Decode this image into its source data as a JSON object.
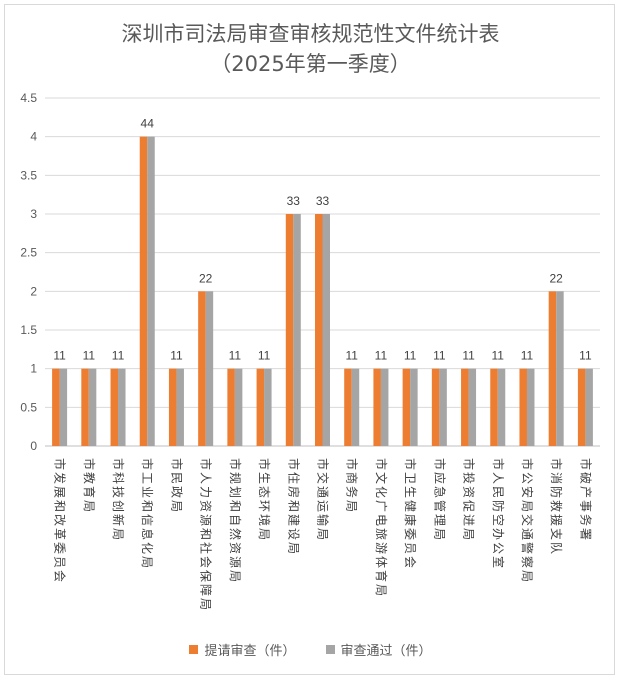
{
  "chart_data": {
    "type": "bar",
    "title": "深圳市司法局审查审核规范性文件统计表",
    "subtitle": "（2025年第一季度）",
    "categories": [
      "市发展和改革委员会",
      "市教育局",
      "市科技创新局",
      "市工业和信息化局",
      "市民政局",
      "市人力资源和社会保障局",
      "市规划和自然资源局",
      "市生态环境局",
      "市住房和建设局",
      "市交通运输局",
      "市商务局",
      "市文化广电旅游体育局",
      "市卫生健康委员会",
      "市应急管理局",
      "市投资促进局",
      "市人民防空办公室",
      "市公安局交通警察局",
      "市消防救援支队",
      "市破产事务署"
    ],
    "series": [
      {
        "name": "提请审查（件）",
        "values": [
          1,
          1,
          1,
          4,
          1,
          2,
          1,
          1,
          3,
          3,
          1,
          1,
          1,
          1,
          1,
          1,
          1,
          2,
          1
        ],
        "color": "#ED7D31"
      },
      {
        "name": "审查通过（件）",
        "values": [
          1,
          1,
          1,
          4,
          1,
          2,
          1,
          1,
          3,
          3,
          1,
          1,
          1,
          1,
          1,
          1,
          1,
          2,
          1
        ],
        "color": "#A5A5A5"
      }
    ],
    "data_labels": [
      "11",
      "11",
      "11",
      "44",
      "11",
      "22",
      "11",
      "11",
      "33",
      "33",
      "11",
      "11",
      "11",
      "11",
      "11",
      "11",
      "11",
      "22",
      "11"
    ],
    "ylim": [
      0,
      4.5
    ],
    "yticks": [
      "0",
      "0.5",
      "1",
      "1.5",
      "2",
      "2.5",
      "3",
      "3.5",
      "4",
      "4.5"
    ],
    "grid": true,
    "legend_position": "bottom"
  }
}
